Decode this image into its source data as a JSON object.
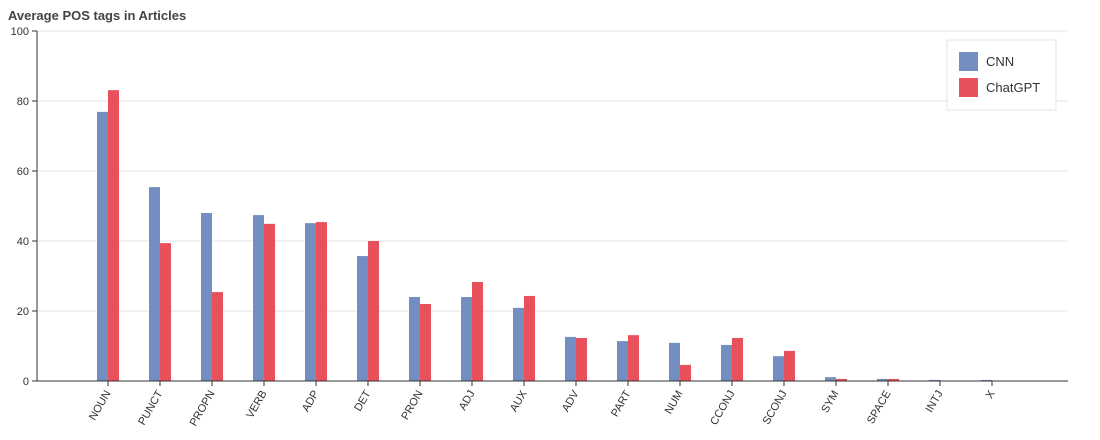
{
  "chart_data": {
    "type": "bar",
    "title": "Average POS tags in Articles",
    "categories": [
      "NOUN",
      "PUNCT",
      "PROPN",
      "VERB",
      "ADP",
      "DET",
      "PRON",
      "ADJ",
      "AUX",
      "ADV",
      "PART",
      "NUM",
      "CCONJ",
      "SCONJ",
      "SYM",
      "SPACE",
      "INTJ",
      "X"
    ],
    "series": [
      {
        "name": "CNN",
        "color": "#738fc1",
        "values": [
          76.9,
          55.4,
          48,
          47.4,
          45.1,
          35.7,
          24,
          24,
          20.9,
          12.6,
          11.4,
          10.9,
          10.3,
          7.1,
          1.1,
          0.6,
          0.3,
          0.3
        ]
      },
      {
        "name": "ChatGPT",
        "color": "#e8505b",
        "values": [
          83.1,
          39.4,
          25.4,
          44.9,
          45.4,
          40,
          22,
          28.3,
          24.3,
          12.3,
          13.1,
          4.6,
          12.3,
          8.6,
          0.6,
          0.6,
          0.1,
          0.1
        ]
      }
    ],
    "ylim": [
      0,
      100
    ],
    "yticks": [
      0,
      20,
      40,
      60,
      80,
      100
    ],
    "grid": true,
    "legend": "top-right"
  }
}
